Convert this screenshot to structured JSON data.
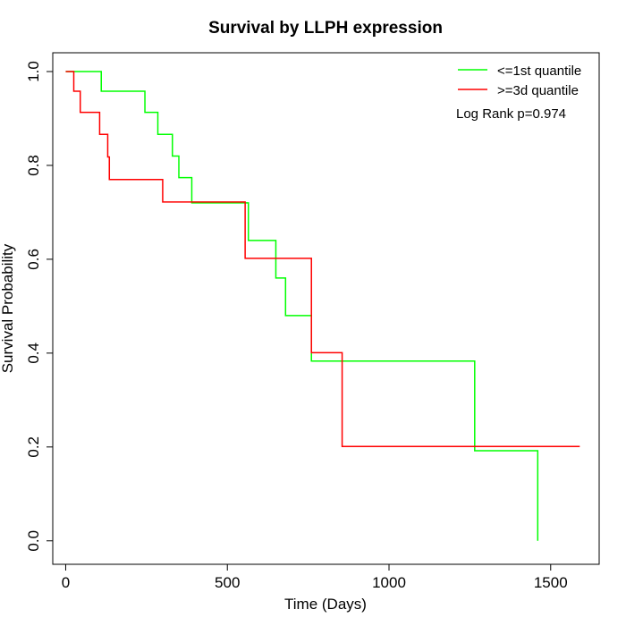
{
  "chart_data": {
    "type": "line",
    "subtype": "kaplan-meier step curve",
    "title": "Survival by LLPH expression",
    "xlabel": "Time (Days)",
    "ylabel": "Survival Probability",
    "xlim": [
      -40,
      1650
    ],
    "ylim": [
      -0.05,
      1.04
    ],
    "x_ticks": [
      0,
      500,
      1000,
      1500
    ],
    "x_tick_labels": [
      "0",
      "500",
      "1000",
      "1500"
    ],
    "y_ticks": [
      0.0,
      0.2,
      0.4,
      0.6,
      0.8,
      1.0
    ],
    "y_tick_labels": [
      "0.0",
      "0.2",
      "0.4",
      "0.6",
      "0.8",
      "1.0"
    ],
    "grid": false,
    "legend_position": "top-right",
    "annotation": "Log Rank p=0.974",
    "series": [
      {
        "name": "<=1st quantile",
        "color": "#00ff00",
        "x": [
          0,
          110,
          245,
          285,
          330,
          350,
          390,
          565,
          650,
          680,
          760,
          1265,
          1460,
          1460
        ],
        "y": [
          1.0,
          0.958,
          0.913,
          0.866,
          0.82,
          0.774,
          0.72,
          0.64,
          0.56,
          0.48,
          0.383,
          0.192,
          0.192,
          0.0
        ]
      },
      {
        "name": ">=3d quantile",
        "color": "#ff0000",
        "x": [
          0,
          25,
          45,
          105,
          130,
          135,
          300,
          555,
          760,
          855,
          1590
        ],
        "y": [
          1.0,
          0.958,
          0.913,
          0.866,
          0.818,
          0.77,
          0.722,
          0.602,
          0.401,
          0.201,
          0.201
        ]
      }
    ]
  }
}
